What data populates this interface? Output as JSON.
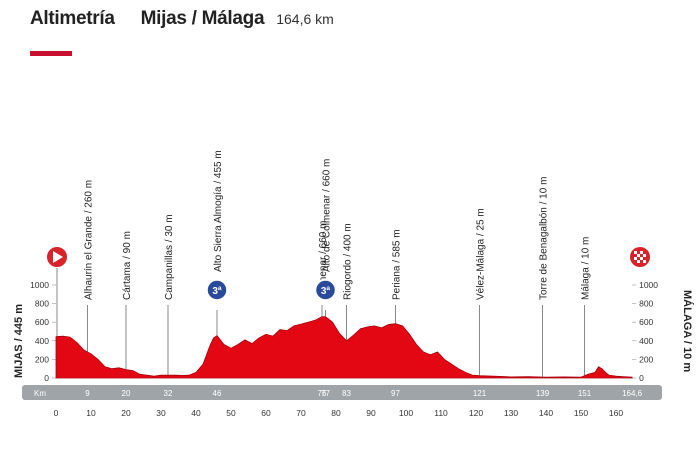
{
  "header": {
    "title": "Altimetría",
    "route": "Mijas / Málaga",
    "distance": "164,6 km"
  },
  "colors": {
    "profile_fill": "#e30613",
    "km_band": "#9ea4a8",
    "accent": "#c8102e",
    "climb_badge": "#2a4a9c"
  },
  "chart_data": {
    "type": "area",
    "title": "Altimetría",
    "subtitle": "Mijas / Málaga 164,6 km",
    "xlabel": "Km",
    "xlim": [
      0,
      164.6
    ],
    "xticks": [
      0,
      10,
      20,
      30,
      40,
      50,
      60,
      70,
      80,
      90,
      100,
      110,
      120,
      130,
      140,
      150,
      160
    ],
    "ylim": [
      0,
      1000
    ],
    "yticks": [
      0,
      200,
      400,
      600,
      800,
      1000
    ],
    "start_label": "MIJAS / 445 m",
    "finish_label": "MÁLAGA / 10 m",
    "axis_unit_label": "Km",
    "x": [
      0,
      2,
      4,
      6,
      8,
      10,
      12,
      14,
      16,
      18,
      20,
      22,
      24,
      26,
      28,
      30,
      32,
      34,
      36,
      38,
      40,
      42,
      44,
      45,
      46,
      48,
      50,
      52,
      54,
      56,
      58,
      60,
      62,
      64,
      66,
      68,
      70,
      72,
      74,
      76,
      77,
      79,
      81,
      83,
      85,
      87,
      89,
      91,
      93,
      95,
      97,
      99,
      101,
      103,
      105,
      107,
      109,
      111,
      113,
      115,
      117,
      119,
      121,
      125,
      130,
      135,
      140,
      145,
      150,
      152,
      154,
      155,
      156,
      157,
      158,
      160,
      162,
      164.6
    ],
    "y": [
      445,
      450,
      440,
      380,
      300,
      260,
      200,
      120,
      100,
      110,
      90,
      80,
      40,
      30,
      20,
      30,
      30,
      30,
      28,
      30,
      60,
      150,
      350,
      430,
      455,
      360,
      320,
      360,
      410,
      370,
      430,
      470,
      450,
      520,
      510,
      560,
      580,
      600,
      620,
      660,
      660,
      600,
      480,
      400,
      460,
      530,
      550,
      560,
      540,
      575,
      585,
      560,
      470,
      360,
      280,
      250,
      280,
      200,
      150,
      100,
      60,
      30,
      25,
      20,
      12,
      15,
      10,
      12,
      10,
      40,
      60,
      120,
      100,
      60,
      30,
      20,
      15,
      10
    ],
    "km_markers": [
      "9",
      "20",
      "32",
      "46",
      "76",
      "77",
      "83",
      "97",
      "121",
      "139",
      "151",
      "164,6"
    ],
    "waypoints": [
      {
        "name": "Alhaurín el Grande / 260 m",
        "km": 9
      },
      {
        "name": "Cártama / 90 m",
        "km": 20
      },
      {
        "name": "Campanillas / 30 m",
        "km": 32
      },
      {
        "name": "Alto Sierra Almogía / 455 m",
        "km": 46,
        "category": "3ª"
      },
      {
        "name": "Colmenar / 660 m",
        "km": 76
      },
      {
        "name": "Alto de Colmenar / 660 m",
        "km": 77,
        "category": "3ª"
      },
      {
        "name": "Riogordo / 400 m",
        "km": 83
      },
      {
        "name": "Periana / 585 m",
        "km": 97
      },
      {
        "name": "Vélez-Málaga / 25 m",
        "km": 121
      },
      {
        "name": "Torre de Benagalbón / 10 m",
        "km": 139
      },
      {
        "name": "Málaga / 10 m",
        "km": 151
      }
    ]
  }
}
